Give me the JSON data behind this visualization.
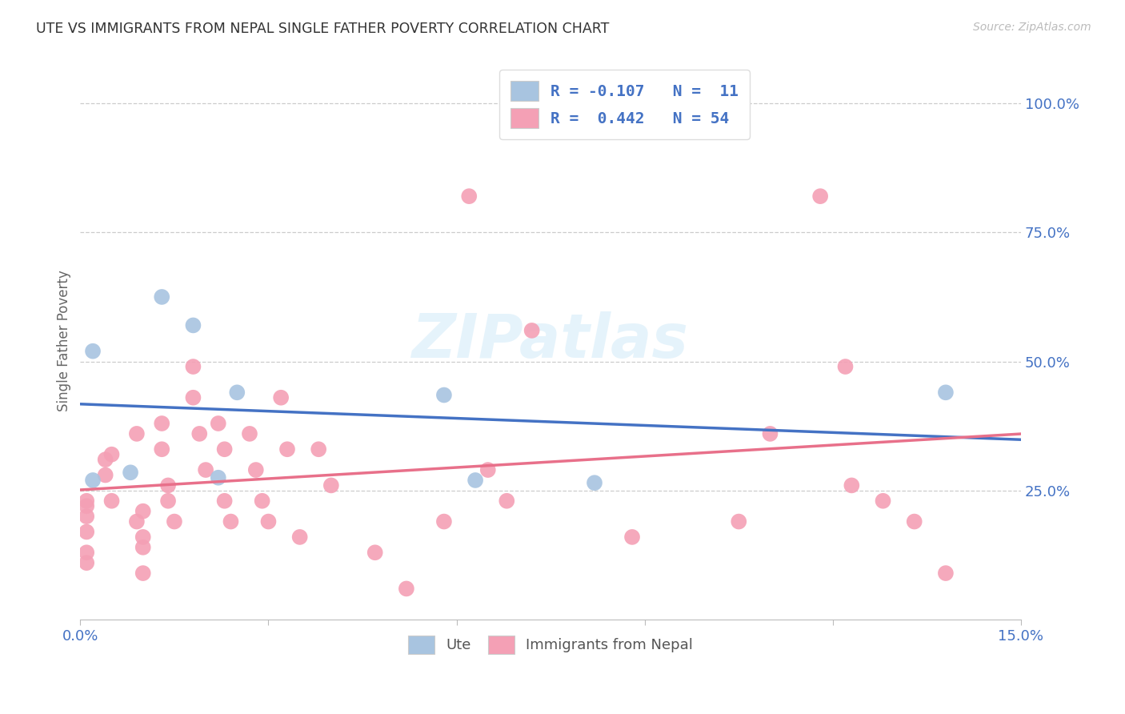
{
  "title": "UTE VS IMMIGRANTS FROM NEPAL SINGLE FATHER POVERTY CORRELATION CHART",
  "source": "Source: ZipAtlas.com",
  "ylabel": "Single Father Poverty",
  "ylabel_right_ticks": [
    "100.0%",
    "75.0%",
    "50.0%",
    "25.0%"
  ],
  "ylabel_right_vals": [
    1.0,
    0.75,
    0.5,
    0.25
  ],
  "xlim": [
    0.0,
    0.15
  ],
  "ylim": [
    0.0,
    1.08
  ],
  "ute_color": "#a8c4e0",
  "nepal_color": "#f4a0b5",
  "ute_line_color": "#4472c4",
  "nepal_line_color": "#e8708a",
  "watermark": "ZIPatlas",
  "legend_text_ute": "R = -0.107   N =  11",
  "legend_text_nepal": "R =  0.442   N = 54",
  "ute_x": [
    0.002,
    0.002,
    0.008,
    0.013,
    0.018,
    0.022,
    0.025,
    0.058,
    0.063,
    0.082,
    0.138
  ],
  "ute_y": [
    0.27,
    0.52,
    0.285,
    0.625,
    0.57,
    0.275,
    0.44,
    0.435,
    0.27,
    0.265,
    0.44
  ],
  "nepal_x": [
    0.001,
    0.001,
    0.001,
    0.001,
    0.001,
    0.001,
    0.004,
    0.004,
    0.005,
    0.005,
    0.009,
    0.009,
    0.01,
    0.01,
    0.01,
    0.01,
    0.013,
    0.013,
    0.014,
    0.014,
    0.015,
    0.018,
    0.018,
    0.019,
    0.02,
    0.022,
    0.023,
    0.023,
    0.024,
    0.027,
    0.028,
    0.029,
    0.03,
    0.032,
    0.033,
    0.035,
    0.038,
    0.04,
    0.047,
    0.052,
    0.058,
    0.062,
    0.065,
    0.068,
    0.072,
    0.088,
    0.105,
    0.11,
    0.118,
    0.122,
    0.123,
    0.128,
    0.133,
    0.138
  ],
  "nepal_y": [
    0.2,
    0.17,
    0.22,
    0.23,
    0.13,
    0.11,
    0.28,
    0.31,
    0.32,
    0.23,
    0.36,
    0.19,
    0.16,
    0.21,
    0.14,
    0.09,
    0.38,
    0.33,
    0.26,
    0.23,
    0.19,
    0.49,
    0.43,
    0.36,
    0.29,
    0.38,
    0.33,
    0.23,
    0.19,
    0.36,
    0.29,
    0.23,
    0.19,
    0.43,
    0.33,
    0.16,
    0.33,
    0.26,
    0.13,
    0.06,
    0.19,
    0.82,
    0.29,
    0.23,
    0.56,
    0.16,
    0.19,
    0.36,
    0.82,
    0.49,
    0.26,
    0.23,
    0.19,
    0.09
  ],
  "background_color": "#ffffff",
  "grid_color": "#cccccc"
}
